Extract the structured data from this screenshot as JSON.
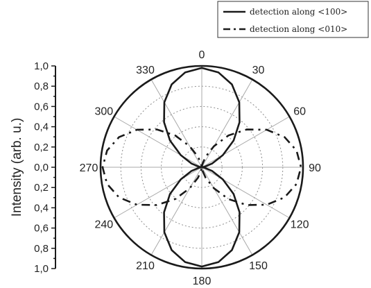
{
  "chart_data": {
    "type": "polar-line",
    "ylabel": "Intensity (arb. u.)",
    "radial_ticks": [
      "1,0",
      "0,8",
      "0,6",
      "0,4",
      "0,2",
      "0,0",
      "0,2",
      "0,4",
      "0,6",
      "0,8",
      "1,0"
    ],
    "radial_range": [
      0,
      1.0
    ],
    "radial_grid_step": 0.2,
    "grid": true,
    "angle_direction": "clockwise",
    "angle_zero_at": "top",
    "angular_ticks": [
      "0",
      "30",
      "60",
      "90",
      "120",
      "150",
      "180",
      "210",
      "240",
      "270",
      "300",
      "330"
    ],
    "legend_position": "top-right",
    "series": [
      {
        "name": "detection along <100>",
        "line_style": "solid",
        "color": "#1a1a1a",
        "theta": [
          0,
          10,
          20,
          30,
          40,
          50,
          60,
          70,
          80,
          90,
          100,
          110,
          120,
          130,
          140,
          150,
          160,
          170,
          180,
          190,
          200,
          210,
          220,
          230,
          240,
          250,
          260,
          270,
          280,
          290,
          300,
          310,
          320,
          330,
          340,
          350,
          360
        ],
        "r": [
          0.98,
          0.95,
          0.87,
          0.74,
          0.58,
          0.41,
          0.24,
          0.11,
          0.03,
          0.0,
          0.03,
          0.11,
          0.24,
          0.41,
          0.58,
          0.74,
          0.87,
          0.95,
          0.98,
          0.95,
          0.87,
          0.74,
          0.58,
          0.41,
          0.24,
          0.11,
          0.03,
          0.0,
          0.03,
          0.11,
          0.24,
          0.41,
          0.58,
          0.74,
          0.87,
          0.95,
          0.98
        ]
      },
      {
        "name": "detection along <010>",
        "line_style": "dash-dot",
        "color": "#1a1a1a",
        "theta": [
          0,
          10,
          20,
          30,
          40,
          50,
          60,
          70,
          80,
          90,
          100,
          110,
          120,
          130,
          140,
          150,
          160,
          170,
          180,
          190,
          200,
          210,
          220,
          230,
          240,
          250,
          260,
          270,
          280,
          290,
          300,
          310,
          320,
          330,
          340,
          350,
          360
        ],
        "r": [
          0.0,
          0.03,
          0.11,
          0.24,
          0.41,
          0.58,
          0.74,
          0.87,
          0.95,
          0.98,
          0.95,
          0.87,
          0.74,
          0.58,
          0.41,
          0.24,
          0.11,
          0.03,
          0.0,
          0.03,
          0.11,
          0.24,
          0.41,
          0.58,
          0.74,
          0.87,
          0.95,
          0.98,
          0.95,
          0.87,
          0.74,
          0.58,
          0.41,
          0.24,
          0.11,
          0.03,
          0.0
        ]
      }
    ]
  }
}
